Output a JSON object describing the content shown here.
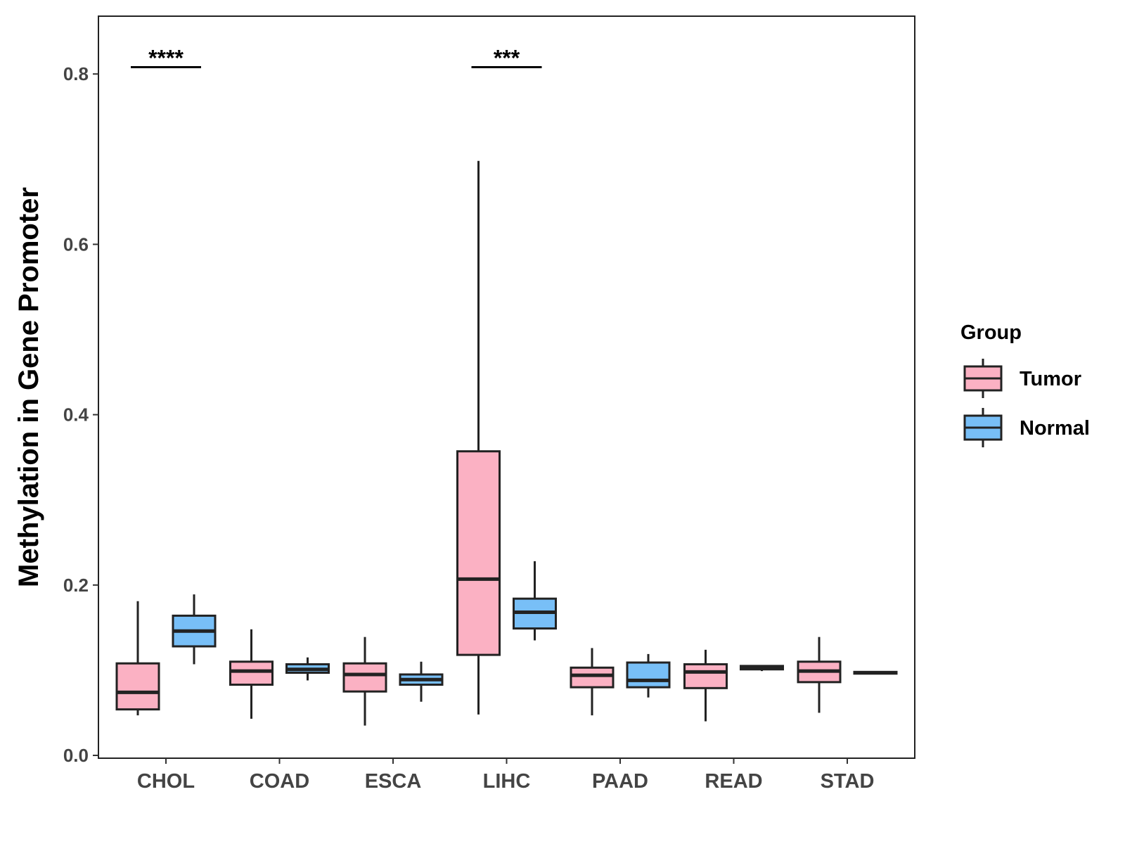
{
  "chart_data": {
    "type": "boxplot",
    "title": "",
    "xlabel": "",
    "ylabel": "Methylation in Gene Promoter",
    "ylim": [
      -0.005,
      0.87
    ],
    "yticks": [
      0.0,
      0.2,
      0.4,
      0.6,
      0.8
    ],
    "ytick_labels": [
      "0.0",
      "0.2",
      "0.4",
      "0.6",
      "0.8"
    ],
    "categories": [
      "CHOL",
      "COAD",
      "ESCA",
      "LIHC",
      "PAAD",
      "READ",
      "STAD"
    ],
    "grid": false,
    "legend": {
      "title": "Group",
      "position": "right",
      "entries": [
        {
          "name": "Tumor",
          "color": "#FBB1C3"
        },
        {
          "name": "Normal",
          "color": "#78BFF7"
        }
      ]
    },
    "series": [
      {
        "name": "Tumor",
        "color": "#FBB1C3",
        "boxes": [
          {
            "category": "CHOL",
            "min": 0.047,
            "q1": 0.054,
            "median": 0.074,
            "q3": 0.108,
            "max": 0.181
          },
          {
            "category": "COAD",
            "min": 0.043,
            "q1": 0.083,
            "median": 0.099,
            "q3": 0.11,
            "max": 0.148
          },
          {
            "category": "ESCA",
            "min": 0.035,
            "q1": 0.075,
            "median": 0.095,
            "q3": 0.108,
            "max": 0.139
          },
          {
            "category": "LIHC",
            "min": 0.048,
            "q1": 0.118,
            "median": 0.207,
            "q3": 0.357,
            "max": 0.698
          },
          {
            "category": "PAAD",
            "min": 0.047,
            "q1": 0.08,
            "median": 0.094,
            "q3": 0.103,
            "max": 0.126
          },
          {
            "category": "READ",
            "min": 0.04,
            "q1": 0.079,
            "median": 0.098,
            "q3": 0.107,
            "max": 0.124
          },
          {
            "category": "STAD",
            "min": 0.05,
            "q1": 0.086,
            "median": 0.099,
            "q3": 0.11,
            "max": 0.139
          }
        ]
      },
      {
        "name": "Normal",
        "color": "#78BFF7",
        "boxes": [
          {
            "category": "CHOL",
            "min": 0.107,
            "q1": 0.128,
            "median": 0.146,
            "q3": 0.164,
            "max": 0.189
          },
          {
            "category": "COAD",
            "min": 0.088,
            "q1": 0.097,
            "median": 0.101,
            "q3": 0.107,
            "max": 0.115
          },
          {
            "category": "ESCA",
            "min": 0.063,
            "q1": 0.083,
            "median": 0.089,
            "q3": 0.095,
            "max": 0.11
          },
          {
            "category": "LIHC",
            "min": 0.135,
            "q1": 0.149,
            "median": 0.168,
            "q3": 0.184,
            "max": 0.228
          },
          {
            "category": "PAAD",
            "min": 0.068,
            "q1": 0.08,
            "median": 0.088,
            "q3": 0.109,
            "max": 0.119
          },
          {
            "category": "READ",
            "min": 0.099,
            "q1": 0.101,
            "median": 0.103,
            "q3": 0.105,
            "max": 0.106
          },
          {
            "category": "STAD",
            "min": 0.095,
            "q1": 0.096,
            "median": 0.097,
            "q3": 0.098,
            "max": 0.099
          }
        ]
      }
    ],
    "annotations": [
      {
        "category": "CHOL",
        "label": "****",
        "y": 0.808
      },
      {
        "category": "LIHC",
        "label": "***",
        "y": 0.808
      }
    ]
  }
}
